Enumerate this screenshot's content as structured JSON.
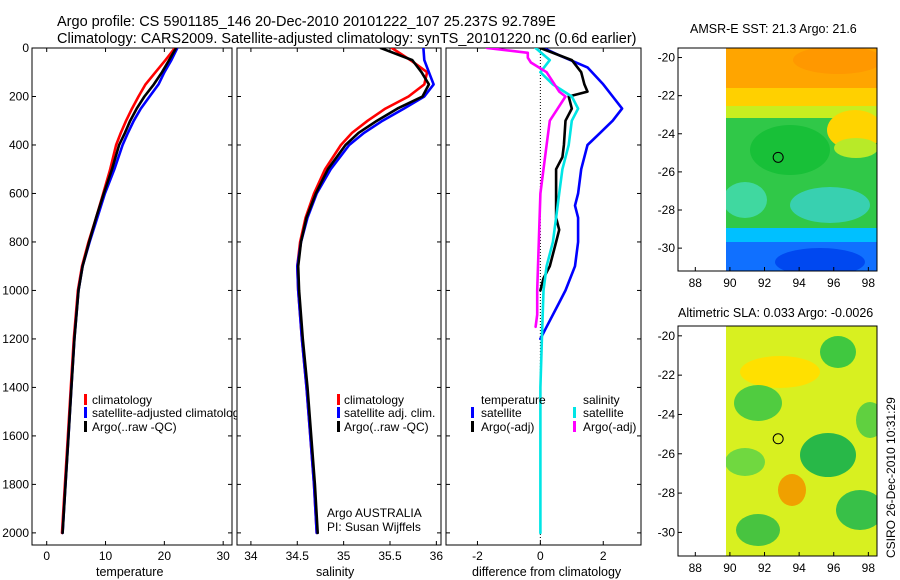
{
  "header": {
    "line1": "Argo profile: CS 5901185_146 20-Dec-2010 20101222_107 25.237S 92.789E",
    "line2": "Climatology: CARS2009. Satellite-adjusted climatology: synTS_20101220.nc (0.6d earlier)"
  },
  "side_stamp": "CSIRO 26-Dec-2010 10:31:29",
  "colors": {
    "climatology": "#ff0000",
    "satellite": "#0000ff",
    "argo": "#000000",
    "salinity_satellite": "#00e5e5",
    "salinity_argo": "#ff00ff"
  },
  "map_colors": {
    "sst": [
      "#ffa500",
      "#ffd000",
      "#c8ee20",
      "#20d040",
      "#00c0ff",
      "#0050ff"
    ],
    "sla": [
      "#ffe000",
      "#d8f020",
      "#80e040",
      "#30c040",
      "#f0a000"
    ]
  },
  "chart_data": [
    {
      "type": "line",
      "xlabel": "temperature",
      "ylim": [
        2050,
        0
      ],
      "xlim": [
        -2.5,
        31.5
      ],
      "y_ticks": [
        0,
        200,
        400,
        600,
        800,
        1000,
        1200,
        1400,
        1600,
        1800,
        2000
      ],
      "x_ticks": [
        0,
        10,
        20,
        30
      ],
      "legend": [
        "climatology",
        "satellite-adjusted climatology",
        "Argo(..raw -QC)"
      ],
      "series": [
        {
          "name": "climatology",
          "color": "#ff0000",
          "points": [
            [
              21.8,
              0
            ],
            [
              20.2,
              50
            ],
            [
              18.5,
              100
            ],
            [
              16.8,
              150
            ],
            [
              15.6,
              200
            ],
            [
              14.5,
              250
            ],
            [
              13.5,
              300
            ],
            [
              12.6,
              350
            ],
            [
              11.8,
              400
            ],
            [
              10.8,
              500
            ],
            [
              9.6,
              600
            ],
            [
              8.4,
              700
            ],
            [
              7.1,
              800
            ],
            [
              6.0,
              900
            ],
            [
              5.3,
              1000
            ],
            [
              4.6,
              1200
            ],
            [
              4.1,
              1400
            ],
            [
              3.6,
              1600
            ],
            [
              3.1,
              1800
            ],
            [
              2.6,
              2000
            ]
          ]
        },
        {
          "name": "satellite-adjusted climatology",
          "color": "#0000ff",
          "points": [
            [
              22.2,
              0
            ],
            [
              21.2,
              50
            ],
            [
              20.0,
              100
            ],
            [
              19.0,
              150
            ],
            [
              17.5,
              200
            ],
            [
              16.0,
              250
            ],
            [
              14.8,
              300
            ],
            [
              13.8,
              350
            ],
            [
              12.9,
              400
            ],
            [
              11.5,
              500
            ],
            [
              9.9,
              600
            ],
            [
              8.6,
              700
            ],
            [
              7.3,
              800
            ],
            [
              6.1,
              900
            ],
            [
              5.4,
              1000
            ],
            [
              4.7,
              1200
            ],
            [
              4.2,
              1400
            ],
            [
              3.7,
              1600
            ],
            [
              3.2,
              1800
            ],
            [
              2.7,
              2000
            ]
          ]
        },
        {
          "name": "Argo(..raw -QC)",
          "color": "#000000",
          "points": [
            [
              22.0,
              0
            ],
            [
              20.8,
              50
            ],
            [
              19.6,
              100
            ],
            [
              18.2,
              150
            ],
            [
              16.6,
              200
            ],
            [
              15.3,
              250
            ],
            [
              14.2,
              300
            ],
            [
              13.3,
              350
            ],
            [
              12.3,
              400
            ],
            [
              11.1,
              500
            ],
            [
              9.7,
              600
            ],
            [
              8.4,
              700
            ],
            [
              7.2,
              800
            ],
            [
              6.1,
              900
            ],
            [
              5.4,
              1000
            ],
            [
              4.7,
              1200
            ],
            [
              4.2,
              1400
            ],
            [
              3.7,
              1600
            ],
            [
              3.2,
              1800
            ],
            [
              2.7,
              2000
            ]
          ]
        }
      ]
    },
    {
      "type": "line",
      "xlabel": "salinity",
      "ylim": [
        2050,
        0
      ],
      "xlim": [
        33.85,
        36.05
      ],
      "x_ticks": [
        34,
        34.5,
        35,
        35.5,
        36
      ],
      "legend": [
        "climatology",
        "satellite adj. clim.",
        "Argo(..raw -QC)"
      ],
      "annotation": [
        "Argo AUSTRALIA",
        "PI: Susan Wijffels"
      ],
      "series": [
        {
          "name": "climatology",
          "color": "#ff0000",
          "points": [
            [
              35.52,
              0
            ],
            [
              35.72,
              50
            ],
            [
              35.9,
              100
            ],
            [
              35.87,
              150
            ],
            [
              35.7,
              200
            ],
            [
              35.45,
              250
            ],
            [
              35.26,
              300
            ],
            [
              35.09,
              350
            ],
            [
              34.97,
              400
            ],
            [
              34.8,
              500
            ],
            [
              34.68,
              600
            ],
            [
              34.59,
              700
            ],
            [
              34.53,
              800
            ],
            [
              34.5,
              900
            ],
            [
              34.51,
              1000
            ],
            [
              34.55,
              1200
            ],
            [
              34.6,
              1400
            ],
            [
              34.64,
              1600
            ],
            [
              34.68,
              1800
            ],
            [
              34.71,
              2000
            ]
          ]
        },
        {
          "name": "satellite adj. clim.",
          "color": "#0000ff",
          "points": [
            [
              35.86,
              0
            ],
            [
              35.87,
              50
            ],
            [
              35.92,
              100
            ],
            [
              35.97,
              150
            ],
            [
              35.87,
              200
            ],
            [
              35.65,
              250
            ],
            [
              35.42,
              300
            ],
            [
              35.22,
              350
            ],
            [
              35.06,
              400
            ],
            [
              34.86,
              500
            ],
            [
              34.71,
              600
            ],
            [
              34.61,
              700
            ],
            [
              34.54,
              800
            ],
            [
              34.5,
              900
            ],
            [
              34.51,
              1000
            ],
            [
              34.55,
              1200
            ],
            [
              34.6,
              1400
            ],
            [
              34.64,
              1600
            ],
            [
              34.68,
              1800
            ],
            [
              34.71,
              2000
            ]
          ]
        },
        {
          "name": "Argo(..raw -QC)",
          "color": "#000000",
          "points": [
            [
              35.4,
              0
            ],
            [
              35.74,
              50
            ],
            [
              35.84,
              100
            ],
            [
              35.92,
              150
            ],
            [
              35.85,
              200
            ],
            [
              35.58,
              250
            ],
            [
              35.36,
              300
            ],
            [
              35.16,
              350
            ],
            [
              35.02,
              400
            ],
            [
              34.83,
              500
            ],
            [
              34.7,
              600
            ],
            [
              34.6,
              700
            ],
            [
              34.54,
              800
            ],
            [
              34.51,
              900
            ],
            [
              34.52,
              1000
            ],
            [
              34.56,
              1200
            ],
            [
              34.61,
              1400
            ],
            [
              34.65,
              1600
            ],
            [
              34.69,
              1800
            ],
            [
              34.72,
              2000
            ]
          ]
        }
      ]
    },
    {
      "type": "line",
      "xlabel": "difference from climatology",
      "ylim": [
        2050,
        0
      ],
      "xlim": [
        -3.0,
        3.2
      ],
      "x_ticks": [
        -2,
        0,
        2
      ],
      "legend_groups": [
        {
          "title": "temperature",
          "entries": [
            "satellite",
            "Argo(-adj)"
          ]
        },
        {
          "title": "salinity",
          "entries": [
            "satellite",
            "Argo(-adj)"
          ]
        }
      ],
      "series": [
        {
          "name": "temperature satellite",
          "color": "#0000ff",
          "points": [
            [
              0.1,
              0
            ],
            [
              0.6,
              30
            ],
            [
              1.5,
              80
            ],
            [
              2.0,
              150
            ],
            [
              2.3,
              200
            ],
            [
              2.6,
              250
            ],
            [
              2.3,
              300
            ],
            [
              1.9,
              350
            ],
            [
              1.5,
              400
            ],
            [
              1.3,
              500
            ],
            [
              1.2,
              600
            ],
            [
              1.1,
              650
            ],
            [
              1.2,
              700
            ],
            [
              1.2,
              800
            ],
            [
              1.1,
              900
            ],
            [
              0.8,
              1000
            ],
            [
              0.6,
              1050
            ],
            [
              0.2,
              1150
            ],
            [
              0.0,
              1200
            ]
          ]
        },
        {
          "name": "temperature Argo(-adj)",
          "color": "#000000",
          "points": [
            [
              0.0,
              0
            ],
            [
              1.0,
              50
            ],
            [
              1.3,
              100
            ],
            [
              1.4,
              150
            ],
            [
              1.5,
              180
            ],
            [
              0.9,
              200
            ],
            [
              1.0,
              250
            ],
            [
              0.8,
              300
            ],
            [
              0.75,
              400
            ],
            [
              0.7,
              450
            ],
            [
              0.5,
              500
            ],
            [
              0.5,
              600
            ],
            [
              0.5,
              700
            ],
            [
              0.6,
              750
            ],
            [
              0.5,
              800
            ],
            [
              0.3,
              900
            ],
            [
              0.1,
              950
            ],
            [
              0.0,
              1000
            ]
          ]
        },
        {
          "name": "salinity satellite",
          "color": "#00e5e5",
          "points": [
            [
              -0.15,
              0
            ],
            [
              0.3,
              50
            ],
            [
              0.0,
              100
            ],
            [
              0.4,
              150
            ],
            [
              1.0,
              200
            ],
            [
              1.2,
              250
            ],
            [
              1.0,
              300
            ],
            [
              0.9,
              400
            ],
            [
              0.7,
              500
            ],
            [
              0.6,
              600
            ],
            [
              0.5,
              700
            ],
            [
              0.4,
              800
            ],
            [
              0.2,
              900
            ],
            [
              0.1,
              1000
            ],
            [
              0.05,
              1200
            ],
            [
              0.0,
              1400
            ],
            [
              0.0,
              1600
            ],
            [
              0.0,
              1800
            ],
            [
              0.0,
              2000
            ]
          ]
        },
        {
          "name": "salinity Argo(-adj)",
          "color": "#ff00ff",
          "points": [
            [
              -1.7,
              0
            ],
            [
              -0.4,
              20
            ],
            [
              -0.4,
              40
            ],
            [
              -0.3,
              60
            ],
            [
              0.2,
              100
            ],
            [
              0.6,
              180
            ],
            [
              0.8,
              200
            ],
            [
              0.55,
              250
            ],
            [
              0.3,
              300
            ],
            [
              0.2,
              400
            ],
            [
              0.1,
              500
            ],
            [
              0.0,
              600
            ],
            [
              -0.05,
              800
            ],
            [
              -0.1,
              1000
            ],
            [
              -0.1,
              1100
            ],
            [
              -0.15,
              1150
            ]
          ]
        }
      ]
    },
    {
      "type": "heatmap",
      "title": "AMSR-E SST: 21.3 Argo: 21.6",
      "x_ticks": [
        88,
        90,
        92,
        94,
        96,
        98
      ],
      "y_ticks": [
        -20,
        -22,
        -24,
        -26,
        -28,
        -30
      ],
      "xlim": [
        87,
        98.5
      ],
      "ylim": [
        -31.2,
        -19.5
      ],
      "marker": {
        "lon": 92.789,
        "lat": -25.237
      }
    },
    {
      "type": "heatmap",
      "title": "Altimetric SLA: 0.033 Argo: -0.0026",
      "x_ticks": [
        88,
        90,
        92,
        94,
        96,
        98
      ],
      "y_ticks": [
        -20,
        -22,
        -24,
        -26,
        -28,
        -30
      ],
      "xlim": [
        87,
        98.5
      ],
      "ylim": [
        -31.2,
        -19.5
      ],
      "marker": {
        "lon": 92.789,
        "lat": -25.237
      }
    }
  ]
}
